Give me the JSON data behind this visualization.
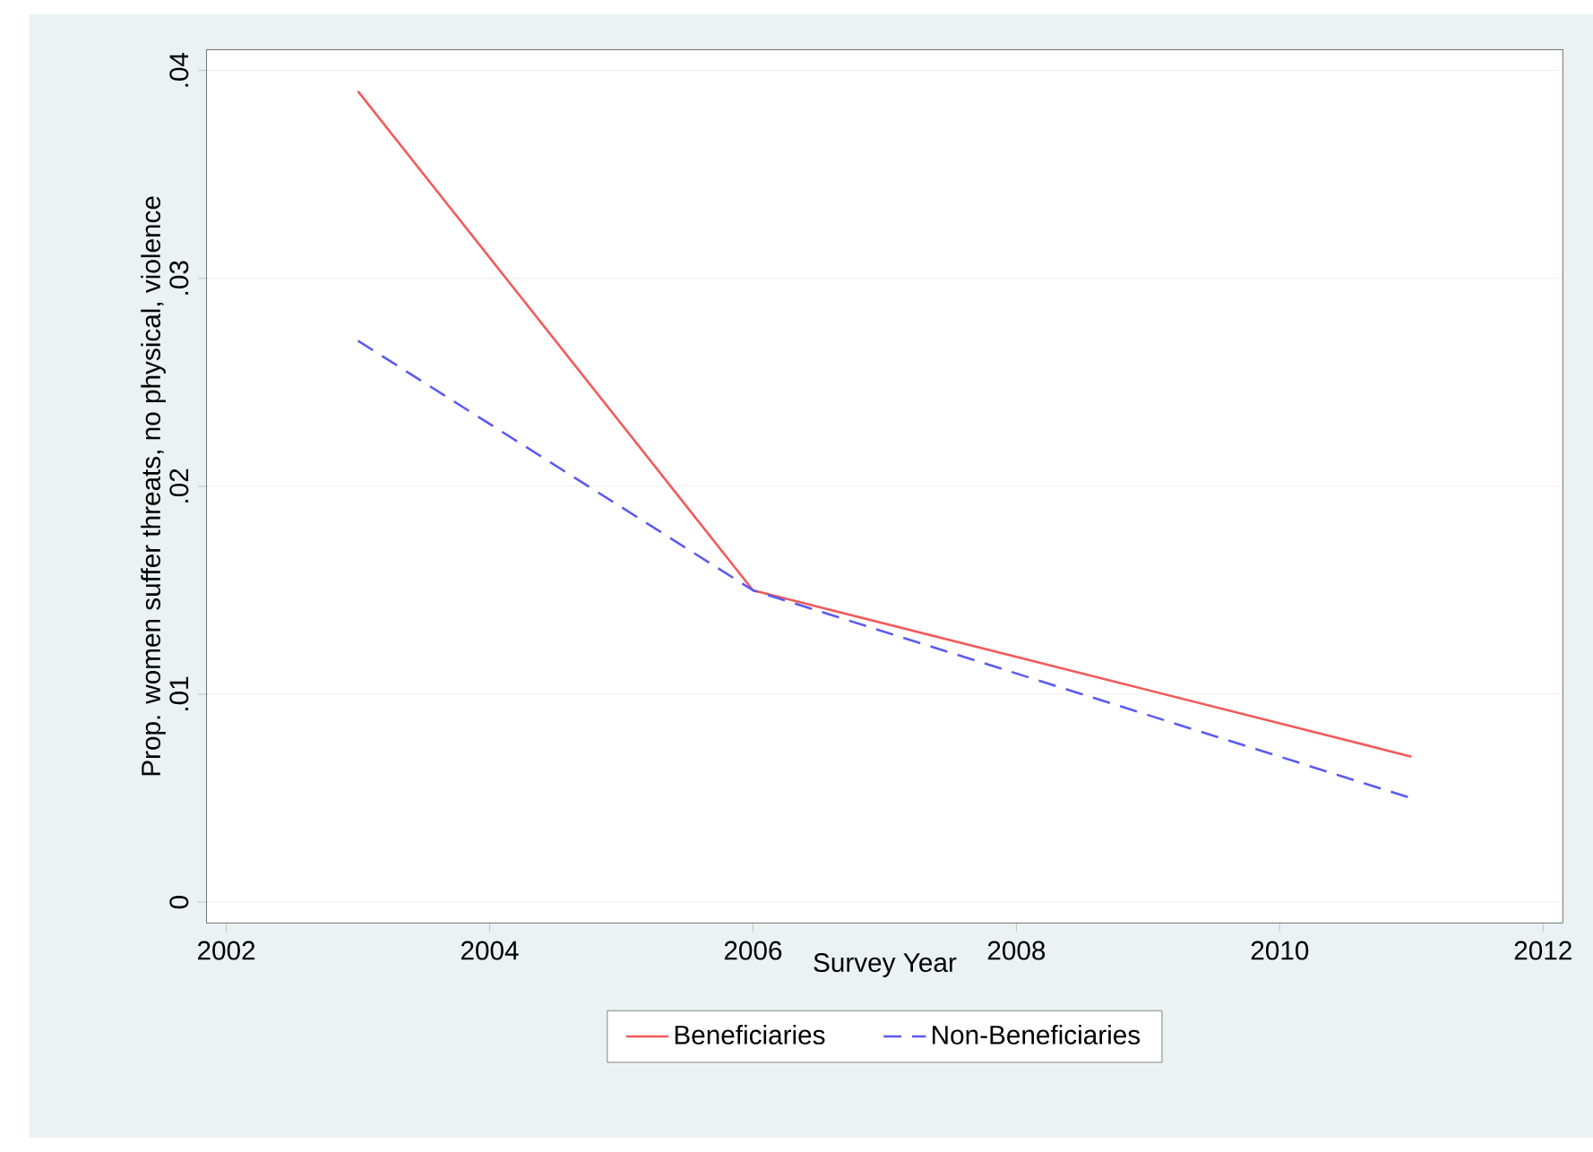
{
  "chart_data": {
    "type": "line",
    "xlabel": "Survey Year",
    "ylabel": "Prop. women suffer threats, no physical, violence",
    "x": [
      2003,
      2006,
      2011
    ],
    "series": [
      {
        "name": "Beneficiaries",
        "color": "#f25a5a",
        "line_style": "solid",
        "values": [
          0.039,
          0.015,
          0.007
        ]
      },
      {
        "name": "Non-Beneficiaries",
        "color": "#5a5af2",
        "line_style": "dashed",
        "values": [
          0.027,
          0.015,
          0.005
        ]
      }
    ],
    "xlim": [
      2001.85,
      2012.15
    ],
    "ylim": [
      -0.001,
      0.041
    ],
    "xticks": [
      2002,
      2004,
      2006,
      2008,
      2010,
      2012
    ],
    "yticks": [
      {
        "value": 0,
        "label": "0"
      },
      {
        "value": 0.01,
        "label": ".01"
      },
      {
        "value": 0.02,
        "label": ".02"
      },
      {
        "value": 0.03,
        "label": ".03"
      },
      {
        "value": 0.04,
        "label": ".04"
      }
    ],
    "grid": "y",
    "legend": "bottom",
    "marker": "none"
  }
}
